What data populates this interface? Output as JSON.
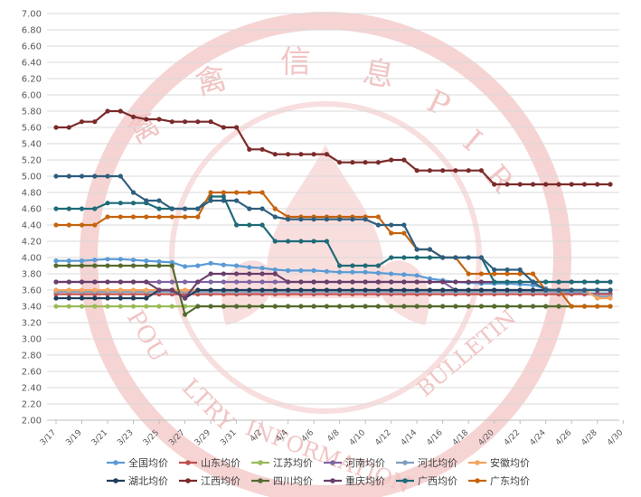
{
  "chart_data": {
    "type": "line",
    "title": "",
    "xlabel": "",
    "ylabel": "",
    "ylim": [
      2.0,
      7.0
    ],
    "yticks": [
      "2.00",
      "2.20",
      "2.40",
      "2.60",
      "2.80",
      "3.00",
      "3.20",
      "3.40",
      "3.60",
      "3.80",
      "4.00",
      "4.20",
      "4.40",
      "4.60",
      "4.80",
      "5.00",
      "5.20",
      "5.40",
      "5.60",
      "5.80",
      "6.00",
      "6.20",
      "6.40",
      "6.60",
      "6.80",
      "7.00"
    ],
    "grid": true,
    "legend_placement": "bottom",
    "watermark": "禽信息 PIR POULTRY INFORMATION BULLETIN",
    "x": [
      "3/17",
      "3/18",
      "3/19",
      "3/20",
      "3/21",
      "3/22",
      "3/23",
      "3/24",
      "3/25",
      "3/26",
      "3/27",
      "3/28",
      "3/29",
      "3/30",
      "3/31",
      "4/1",
      "4/2",
      "4/3",
      "4/4",
      "4/5",
      "4/6",
      "4/7",
      "4/8",
      "4/9",
      "4/10",
      "4/11",
      "4/12",
      "4/13",
      "4/14",
      "4/15",
      "4/16",
      "4/17",
      "4/18",
      "4/19",
      "4/20",
      "4/21",
      "4/22",
      "4/23",
      "4/24",
      "4/25",
      "4/26",
      "4/27",
      "4/28",
      "4/29"
    ],
    "xtick_labels": [
      "3/17",
      "3/19",
      "3/21",
      "3/23",
      "3/25",
      "3/27",
      "3/29",
      "3/31",
      "4/2",
      "4/4",
      "4/6",
      "4/8",
      "4/10",
      "4/12",
      "4/14",
      "4/16",
      "4/18",
      "4/20",
      "4/22",
      "4/24",
      "4/26",
      "4/28",
      "4/30"
    ],
    "series": [
      {
        "name": "全国均价",
        "color": "#5b9bd5",
        "values": [
          3.96,
          3.96,
          3.96,
          3.97,
          3.98,
          3.98,
          3.97,
          3.96,
          3.95,
          3.94,
          3.89,
          3.9,
          3.93,
          3.91,
          3.9,
          3.88,
          3.87,
          3.85,
          3.84,
          3.84,
          3.84,
          3.83,
          3.82,
          3.82,
          3.82,
          3.81,
          3.8,
          3.79,
          3.78,
          3.74,
          3.72,
          3.7,
          3.69,
          3.68,
          3.68,
          3.68,
          3.67,
          3.66,
          3.62,
          3.58,
          3.57,
          3.56,
          3.56,
          3.56
        ]
      },
      {
        "name": "山东均价",
        "color": "#c0504d",
        "values": [
          3.55,
          3.55,
          3.55,
          3.55,
          3.55,
          3.55,
          3.55,
          3.55,
          3.55,
          3.55,
          3.55,
          3.55,
          3.55,
          3.55,
          3.55,
          3.55,
          3.55,
          3.55,
          3.55,
          3.55,
          3.55,
          3.55,
          3.55,
          3.55,
          3.55,
          3.55,
          3.55,
          3.55,
          3.55,
          3.55,
          3.55,
          3.55,
          3.55,
          3.55,
          3.55,
          3.55,
          3.55,
          3.55,
          3.55,
          3.55,
          3.55,
          3.55,
          3.55,
          3.55
        ]
      },
      {
        "name": "江苏均价",
        "color": "#9bbb59",
        "values": [
          3.4,
          3.4,
          3.4,
          3.4,
          3.4,
          3.4,
          3.4,
          3.4,
          3.4,
          3.4,
          3.4,
          3.4,
          3.4,
          3.4,
          3.4,
          3.4,
          3.4,
          3.4,
          3.4,
          3.4,
          3.4,
          3.4,
          3.4,
          3.4,
          3.4,
          3.4,
          3.4,
          3.4,
          3.4,
          3.4,
          3.4,
          3.4,
          3.4,
          3.4,
          3.4,
          3.4,
          3.4,
          3.4,
          3.4,
          3.4,
          3.4,
          3.4,
          3.4,
          3.4
        ]
      },
      {
        "name": "河南均价",
        "color": "#8064a2",
        "values": [
          3.7,
          3.7,
          3.7,
          3.7,
          3.7,
          3.7,
          3.7,
          3.7,
          3.7,
          3.7,
          3.7,
          3.7,
          3.7,
          3.7,
          3.7,
          3.7,
          3.7,
          3.7,
          3.7,
          3.7,
          3.7,
          3.7,
          3.7,
          3.7,
          3.7,
          3.7,
          3.7,
          3.7,
          3.7,
          3.7,
          3.7,
          3.6,
          3.6,
          3.6,
          3.6,
          3.6,
          3.6,
          3.6,
          3.6,
          3.6,
          3.6,
          3.6,
          3.6,
          3.6
        ]
      },
      {
        "name": "河北均价",
        "color": "#7f9fbf",
        "values": [
          3.58,
          3.58,
          3.58,
          3.58,
          3.58,
          3.58,
          3.58,
          3.58,
          3.58,
          3.58,
          3.58,
          3.58,
          3.58,
          3.58,
          3.58,
          3.58,
          3.58,
          3.58,
          3.58,
          3.58,
          3.58,
          3.58,
          3.58,
          3.58,
          3.58,
          3.58,
          3.58,
          3.58,
          3.58,
          3.58,
          3.58,
          3.58,
          3.58,
          3.58,
          3.58,
          3.58,
          3.58,
          3.58,
          3.58,
          3.58,
          3.58,
          3.58,
          3.52,
          3.52
        ]
      },
      {
        "name": "安徽均价",
        "color": "#f4a460",
        "values": [
          3.6,
          3.6,
          3.6,
          3.6,
          3.6,
          3.6,
          3.6,
          3.6,
          3.6,
          3.6,
          3.6,
          3.6,
          3.6,
          3.6,
          3.6,
          3.6,
          3.6,
          3.6,
          3.6,
          3.6,
          3.6,
          3.6,
          3.6,
          3.6,
          3.6,
          3.6,
          3.6,
          3.6,
          3.6,
          3.6,
          3.6,
          3.6,
          3.6,
          3.6,
          3.6,
          3.6,
          3.6,
          3.6,
          3.6,
          3.6,
          3.6,
          3.6,
          3.5,
          3.5
        ]
      },
      {
        "name": "湖北均价",
        "color": "#1f3d5c",
        "values": [
          3.5,
          3.5,
          3.5,
          3.5,
          3.5,
          3.5,
          3.5,
          3.5,
          3.6,
          3.6,
          3.5,
          3.6,
          3.6,
          3.6,
          3.6,
          3.6,
          3.6,
          3.6,
          3.6,
          3.6,
          3.6,
          3.6,
          3.6,
          3.6,
          3.6,
          3.6,
          3.6,
          3.6,
          3.6,
          3.6,
          3.6,
          3.6,
          3.6,
          3.6,
          3.6,
          3.6,
          3.6,
          3.6,
          3.6,
          3.6,
          3.6,
          3.6,
          3.6,
          3.6
        ]
      },
      {
        "name": "江西均价",
        "color": "#7b2a2a",
        "values": [
          5.6,
          5.6,
          5.67,
          5.67,
          5.8,
          5.8,
          5.73,
          5.7,
          5.7,
          5.67,
          5.67,
          5.67,
          5.67,
          5.6,
          5.6,
          5.33,
          5.33,
          5.27,
          5.27,
          5.27,
          5.27,
          5.27,
          5.17,
          5.17,
          5.17,
          5.17,
          5.2,
          5.2,
          5.07,
          5.07,
          5.07,
          5.07,
          5.07,
          5.07,
          4.9,
          4.9,
          4.9,
          4.9,
          4.9,
          4.9,
          4.9,
          4.9,
          4.9,
          4.9
        ]
      },
      {
        "name": "四川均价",
        "color": "#556b2f",
        "values": [
          3.9,
          3.9,
          3.9,
          3.9,
          3.9,
          3.9,
          3.9,
          3.9,
          3.9,
          3.9,
          3.3,
          3.4,
          3.4,
          3.4,
          3.4,
          3.4,
          3.4,
          3.4,
          3.4,
          3.4,
          3.4,
          3.4,
          3.4,
          3.4,
          3.4,
          3.4,
          3.4,
          3.4,
          3.4,
          3.4,
          3.4,
          3.4,
          3.4,
          3.4,
          3.4,
          3.4,
          3.4,
          3.4,
          3.4,
          3.4,
          3.4,
          3.4,
          3.4,
          3.4
        ]
      },
      {
        "name": "重庆均价",
        "color": "#6a3e6a",
        "values": [
          3.7,
          3.7,
          3.7,
          3.7,
          3.7,
          3.7,
          3.7,
          3.7,
          3.6,
          3.6,
          3.5,
          3.7,
          3.8,
          3.8,
          3.8,
          3.8,
          3.8,
          3.8,
          3.7,
          3.7,
          3.7,
          3.7,
          3.7,
          3.7,
          3.7,
          3.7,
          3.7,
          3.7,
          3.7,
          3.7,
          3.7,
          3.7,
          3.7,
          3.7,
          3.7,
          3.7,
          3.7,
          3.7,
          3.7,
          3.7,
          3.7,
          3.7,
          3.7,
          3.7
        ]
      },
      {
        "name": "广西均价",
        "color": "#1f6b78",
        "values": [
          4.6,
          4.6,
          4.6,
          4.6,
          4.67,
          4.67,
          4.67,
          4.67,
          4.6,
          4.6,
          4.6,
          4.6,
          4.75,
          4.75,
          4.4,
          4.4,
          4.4,
          4.2,
          4.2,
          4.2,
          4.2,
          4.2,
          3.9,
          3.9,
          3.9,
          3.9,
          4.0,
          4.0,
          4.0,
          4.0,
          4.0,
          4.0,
          4.0,
          4.0,
          3.7,
          3.7,
          3.7,
          3.7,
          3.7,
          3.7,
          3.7,
          3.7,
          3.7,
          3.7
        ]
      },
      {
        "name": "广东均价",
        "color": "#c5640e",
        "values": [
          4.4,
          4.4,
          4.4,
          4.4,
          4.5,
          4.5,
          4.5,
          4.5,
          4.5,
          4.5,
          4.5,
          4.5,
          4.8,
          4.8,
          4.8,
          4.8,
          4.8,
          4.6,
          4.5,
          4.5,
          4.5,
          4.5,
          4.5,
          4.5,
          4.5,
          4.5,
          4.3,
          4.3,
          4.1,
          4.1,
          4.0,
          4.0,
          3.8,
          3.8,
          3.8,
          3.8,
          3.8,
          3.8,
          3.6,
          3.6,
          3.4,
          3.4,
          3.4,
          3.4
        ]
      },
      {
        "name": "",
        "color": "#2e5e7e",
        "values": [
          5.0,
          5.0,
          5.0,
          5.0,
          5.0,
          5.0,
          4.8,
          4.7,
          4.7,
          4.6,
          4.6,
          4.6,
          4.7,
          4.7,
          4.7,
          4.6,
          4.6,
          4.5,
          4.47,
          4.47,
          4.47,
          4.47,
          4.47,
          4.47,
          4.47,
          4.4,
          4.4,
          4.4,
          4.1,
          4.1,
          4.0,
          4.0,
          4.0,
          4.0,
          3.85,
          3.85,
          3.85,
          3.7,
          3.6,
          3.6,
          3.6,
          3.6,
          3.6,
          3.6
        ]
      }
    ]
  }
}
